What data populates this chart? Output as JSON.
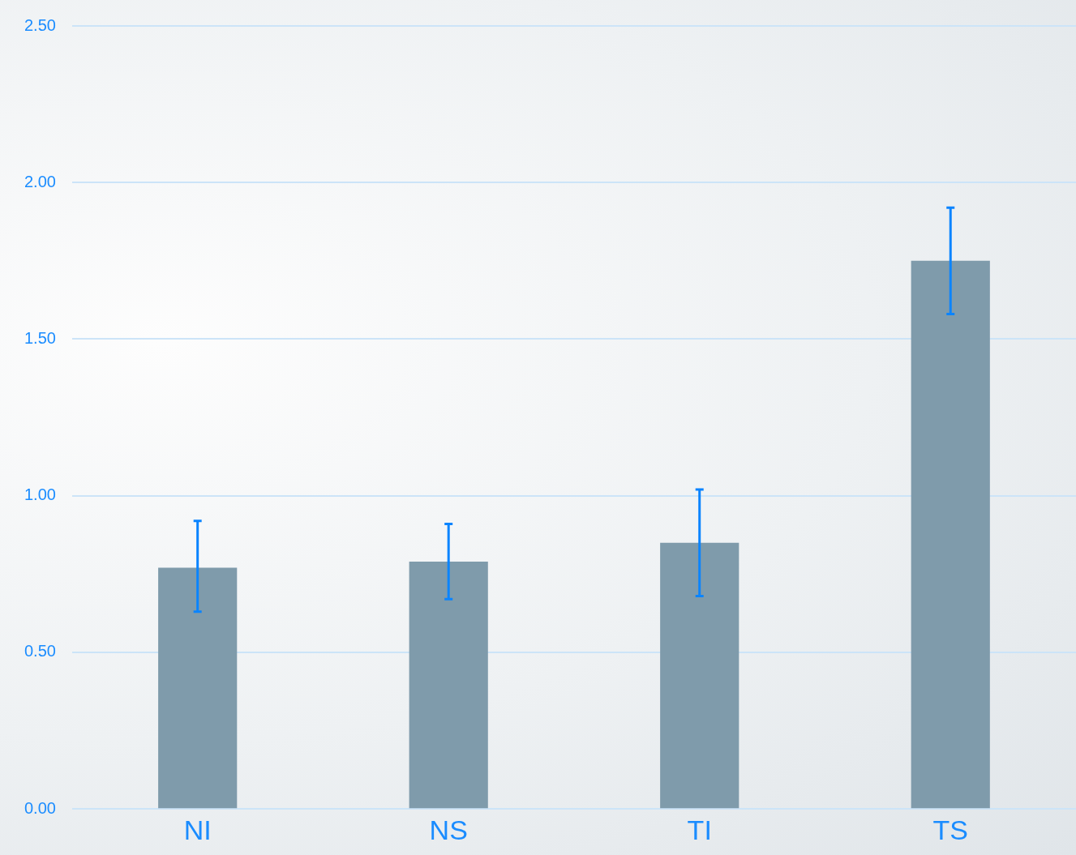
{
  "chart_data": {
    "type": "bar",
    "categories": [
      "NI",
      "NS",
      "TI",
      "TS"
    ],
    "values": [
      0.77,
      0.79,
      0.85,
      1.75
    ],
    "color": "#7f9bab",
    "errors": [
      [
        0.63,
        0.92
      ],
      [
        0.67,
        0.91
      ],
      [
        0.68,
        1.02
      ],
      [
        1.58,
        1.92
      ]
    ],
    "ylim": [
      0,
      2.5
    ],
    "yticks": [
      {
        "value": 0,
        "label": "0.00"
      },
      {
        "value": 0.5,
        "label": "0.50"
      },
      {
        "value": 1,
        "label": "1.00"
      },
      {
        "value": 1.5,
        "label": "1.50"
      },
      {
        "value": 2,
        "label": "2.00"
      },
      {
        "value": 2.5,
        "label": "2.50"
      }
    ],
    "grid": "y"
  }
}
